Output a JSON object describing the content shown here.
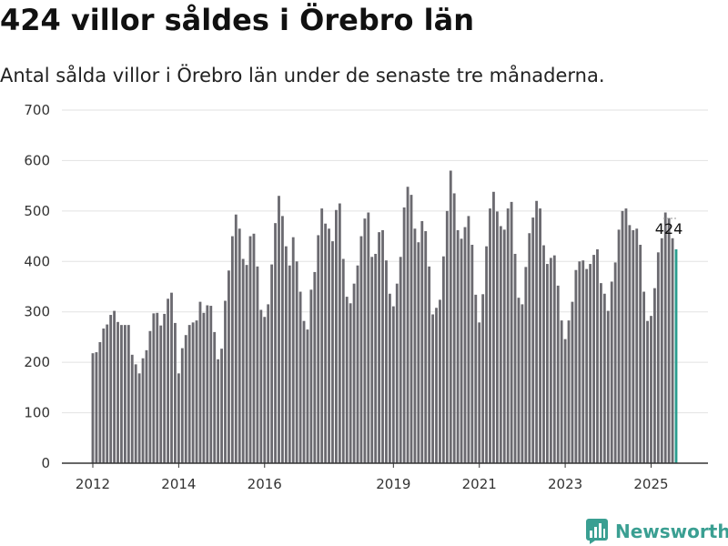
{
  "title": "424 villor såldes i Örebro län",
  "subtitle": "Antal sålda villor i Örebro län under de senaste tre månaderna.",
  "brand": {
    "name": "Newsworthy"
  },
  "colors": {
    "bar": "#6b6a70",
    "highlight": "#2a9d8f",
    "grid": "#e2e2e2",
    "axis": "#333333",
    "brand": "#3a9f92"
  },
  "chart_data": {
    "type": "bar",
    "title": "",
    "xlabel": "",
    "ylabel": "",
    "ylim": [
      0,
      700
    ],
    "yticks": [
      0,
      100,
      200,
      300,
      400,
      500,
      600,
      700
    ],
    "grid": true,
    "legend": "none",
    "start": "2012-01",
    "x_ticks": [
      "2012",
      "2014",
      "2016",
      "2019",
      "2021",
      "2023",
      "2025"
    ],
    "highlight_annotation": "424",
    "series": [
      {
        "values": [
          218,
          220,
          240,
          267,
          275,
          294,
          302,
          280,
          274,
          274,
          274,
          215,
          196,
          178,
          208,
          224,
          262,
          297,
          298,
          273,
          296,
          326,
          338,
          278,
          178,
          228,
          254,
          274,
          279,
          283,
          320,
          298,
          313,
          312,
          260,
          206,
          227,
          322,
          382,
          450,
          493,
          465,
          405,
          393,
          450,
          455,
          390,
          304,
          290,
          315,
          394,
          476,
          530,
          490,
          430,
          392,
          448,
          400,
          340,
          282,
          265,
          344,
          379,
          452,
          505,
          475,
          465,
          440,
          502,
          515,
          405,
          330,
          317,
          356,
          392,
          450,
          485,
          497,
          409,
          415,
          458,
          462,
          402,
          336,
          311,
          356,
          409,
          507,
          548,
          532,
          465,
          438,
          480,
          460,
          390,
          295,
          308,
          324,
          410,
          500,
          580,
          535,
          462,
          445,
          468,
          490,
          433,
          334,
          279,
          335,
          430,
          505,
          538,
          499,
          470,
          463,
          505,
          518,
          415,
          328,
          315,
          389,
          456,
          487,
          520,
          505,
          432,
          395,
          407,
          412,
          352,
          283,
          246,
          283,
          320,
          383,
          400,
          402,
          385,
          395,
          413,
          424,
          357,
          336,
          302,
          360,
          398,
          463,
          500,
          505,
          472,
          462,
          465,
          433,
          340,
          282,
          292,
          347,
          418,
          446,
          497,
          486,
          446,
          424
        ]
      }
    ]
  }
}
